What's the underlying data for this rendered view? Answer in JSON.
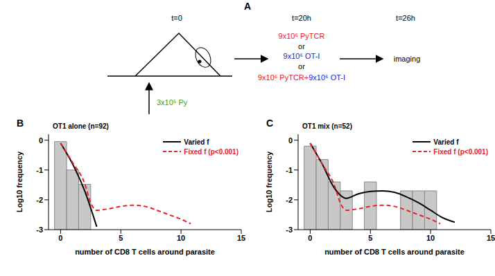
{
  "panel_a": {
    "label": "A",
    "times": [
      "t=0",
      "t=20h",
      "t=26h"
    ],
    "injection": {
      "text": "3x10⁵ Py",
      "color": "#1fa81f"
    },
    "separator": "or",
    "options": [
      [
        {
          "text": "9x10⁶ PyTCR",
          "color": "#e8202a"
        }
      ],
      [
        {
          "text": "9x10⁶ OT-I",
          "color": "#2323d8"
        }
      ],
      [
        {
          "text": "9x10⁶ PyTCR+",
          "color": "#e8202a"
        },
        {
          "text": "9x10⁶ OT-I",
          "color": "#2323d8"
        }
      ]
    ],
    "final": "imaging"
  },
  "chart_data": [
    {
      "panel_label": "B",
      "type": "histogram",
      "title": "OT1 alone (n=92)",
      "x_label": "number of CD8 T cells around parasite",
      "y_label": "Log10 frequency",
      "bins": [
        -0.5,
        0.5,
        1.5,
        2.5
      ],
      "values": [
        -0.05,
        -1.0,
        -1.48
      ],
      "color": "#c8c8c8",
      "xlim": [
        -1,
        15
      ],
      "xticks": [
        0,
        5,
        10,
        15
      ],
      "ylim": [
        -3,
        0.2
      ],
      "yticks": [
        -3,
        -2,
        -1,
        0
      ],
      "legend": "upper right",
      "series": [
        {
          "name": "Varied f",
          "color": "#000000",
          "line_style": "solid",
          "x": [
            0,
            1,
            2,
            3
          ],
          "values": [
            -0.1,
            -0.8,
            -1.7,
            -2.9
          ]
        },
        {
          "name": "Fixed f (p<0.001)",
          "color": "#e8202a",
          "line_style": "dashed",
          "x": [
            0,
            1,
            2,
            2.5,
            3,
            4,
            5,
            6,
            7,
            8,
            9,
            10,
            10.8
          ],
          "values": [
            -0.1,
            -0.75,
            -1.45,
            -2.1,
            -2.35,
            -2.3,
            -2.22,
            -2.18,
            -2.22,
            -2.35,
            -2.5,
            -2.65,
            -2.8
          ]
        }
      ]
    },
    {
      "panel_label": "C",
      "type": "histogram",
      "title": "OT1 mix (n=52)",
      "x_label": "number of CD8 T cells around parasite",
      "y_label": "Log10 frequency",
      "bins": [
        -0.5,
        0.5,
        1.5,
        2.5,
        3.5,
        4.5,
        5.5,
        6.5,
        7.5,
        8.5,
        9.5,
        10.5
      ],
      "values": [
        -0.2,
        -0.65,
        -1.4,
        -1.7,
        null,
        -1.4,
        null,
        null,
        -1.7,
        -1.7,
        -1.7
      ],
      "color": "#c8c8c8",
      "xlim": [
        -1,
        15
      ],
      "xticks": [
        0,
        5,
        10,
        15
      ],
      "ylim": [
        -3,
        0.2
      ],
      "yticks": [
        -3,
        -2,
        -1,
        0
      ],
      "legend": "upper right",
      "series": [
        {
          "name": "Varied f",
          "color": "#000000",
          "line_style": "solid",
          "x": [
            0,
            1,
            2,
            3,
            4,
            5,
            6,
            7,
            8,
            9,
            10,
            11,
            12
          ],
          "values": [
            -0.1,
            -0.8,
            -1.6,
            -1.95,
            -1.8,
            -1.72,
            -1.7,
            -1.75,
            -1.9,
            -2.1,
            -2.35,
            -2.6,
            -2.75
          ]
        },
        {
          "name": "Fixed f (p<0.001)",
          "color": "#e8202a",
          "line_style": "dashed",
          "x": [
            0,
            1,
            2,
            2.5,
            3,
            4,
            5,
            6,
            7,
            8,
            9,
            10,
            10.8
          ],
          "values": [
            -0.1,
            -0.8,
            -1.5,
            -2.1,
            -2.35,
            -2.3,
            -2.22,
            -2.18,
            -2.22,
            -2.35,
            -2.5,
            -2.65,
            -2.8
          ]
        }
      ]
    }
  ]
}
